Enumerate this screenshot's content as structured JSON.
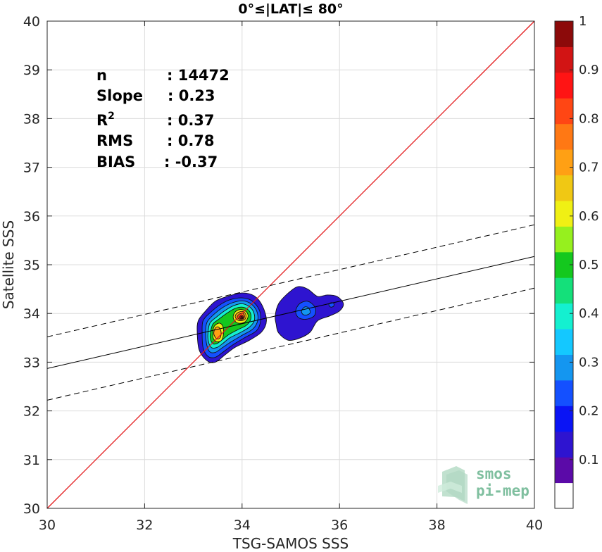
{
  "chart_data": {
    "type": "contour",
    "title": "0°≤|LAT|≤ 80°",
    "xlabel": "TSG-SAMOS SSS",
    "ylabel": "Satellite SSS",
    "xlim": [
      30,
      40
    ],
    "ylim": [
      30,
      40
    ],
    "xticks": [
      "30",
      "32",
      "34",
      "36",
      "38",
      "40"
    ],
    "yticks": [
      "30",
      "31",
      "32",
      "33",
      "34",
      "35",
      "36",
      "37",
      "38",
      "39",
      "40"
    ],
    "grid": true,
    "identity_line": {
      "from": [
        30,
        30
      ],
      "to": [
        40,
        40
      ],
      "color": "#e31a1c"
    },
    "regression_line": {
      "from": [
        30,
        32.87
      ],
      "to": [
        40,
        35.17
      ]
    },
    "confidence_lines": [
      {
        "from": [
          30,
          33.52
        ],
        "to": [
          40,
          35.82
        ]
      },
      {
        "from": [
          30,
          32.22
        ],
        "to": [
          40,
          34.52
        ]
      }
    ],
    "stats": [
      {
        "label": "n",
        "value": ": 14472"
      },
      {
        "label": "Slope",
        "value": ": 0.23"
      },
      {
        "label": "R",
        "sup": "2",
        "value": ": 0.37"
      },
      {
        "label": "RMS",
        "value": ": 0.78"
      },
      {
        "label": "BIAS",
        "value": ": -0.37"
      }
    ],
    "colorbar": {
      "range": [
        0,
        1
      ],
      "ticks": [
        "0.1",
        "0.2",
        "0.3",
        "0.4",
        "0.5",
        "0.6",
        "0.7",
        "0.8",
        "0.9",
        "1"
      ],
      "colors": [
        "#ffffff",
        "#5b0aa8",
        "#2e14d0",
        "#0a14f5",
        "#1450ff",
        "#1496f0",
        "#14c8ff",
        "#14f0d0",
        "#14e07a",
        "#14c81e",
        "#96f01e",
        "#f0f014",
        "#f0c814",
        "#ffa014",
        "#ff7814",
        "#ff4614",
        "#ff1414",
        "#d21414",
        "#8c0a0a"
      ]
    },
    "clusters": [
      {
        "name": "",
        "levels": [
          {
            "value": 0.1,
            "points": [
              [
                33.08,
                33.6
              ],
              [
                33.1,
                33.85
              ],
              [
                33.25,
                34.05
              ],
              [
                33.45,
                34.25
              ],
              [
                33.7,
                34.35
              ],
              [
                34.0,
                34.42
              ],
              [
                34.25,
                34.36
              ],
              [
                34.42,
                34.15
              ],
              [
                34.5,
                33.85
              ],
              [
                34.4,
                33.62
              ],
              [
                34.15,
                33.45
              ],
              [
                33.85,
                33.3
              ],
              [
                33.65,
                33.15
              ],
              [
                33.45,
                33.0
              ],
              [
                33.28,
                33.03
              ],
              [
                33.12,
                33.25
              ]
            ]
          },
          {
            "value": 0.2,
            "points": [
              [
                33.18,
                33.6
              ],
              [
                33.2,
                33.85
              ],
              [
                33.35,
                34.02
              ],
              [
                33.55,
                34.18
              ],
              [
                33.75,
                34.28
              ],
              [
                34.0,
                34.32
              ],
              [
                34.2,
                34.26
              ],
              [
                34.35,
                34.08
              ],
              [
                34.38,
                33.85
              ],
              [
                34.3,
                33.65
              ],
              [
                34.05,
                33.5
              ],
              [
                33.8,
                33.35
              ],
              [
                33.6,
                33.2
              ],
              [
                33.45,
                33.1
              ],
              [
                33.3,
                33.12
              ],
              [
                33.2,
                33.3
              ]
            ]
          },
          {
            "value": 0.3,
            "points": [
              [
                33.25,
                33.6
              ],
              [
                33.28,
                33.82
              ],
              [
                33.42,
                33.98
              ],
              [
                33.6,
                34.12
              ],
              [
                33.8,
                34.22
              ],
              [
                34.0,
                34.26
              ],
              [
                34.18,
                34.2
              ],
              [
                34.3,
                34.05
              ],
              [
                34.32,
                33.85
              ],
              [
                34.22,
                33.68
              ],
              [
                34.0,
                33.55
              ],
              [
                33.78,
                33.42
              ],
              [
                33.6,
                33.3
              ],
              [
                33.45,
                33.2
              ],
              [
                33.33,
                33.22
              ],
              [
                33.27,
                33.38
              ]
            ]
          },
          {
            "value": 0.4,
            "points": [
              [
                33.3,
                33.6
              ],
              [
                33.34,
                33.8
              ],
              [
                33.48,
                33.93
              ],
              [
                33.65,
                34.06
              ],
              [
                33.83,
                34.16
              ],
              [
                34.0,
                34.2
              ],
              [
                34.15,
                34.14
              ],
              [
                34.24,
                34.02
              ],
              [
                34.25,
                33.85
              ],
              [
                34.15,
                33.72
              ],
              [
                33.95,
                33.6
              ],
              [
                33.75,
                33.5
              ],
              [
                33.6,
                33.38
              ],
              [
                33.48,
                33.3
              ],
              [
                33.37,
                33.3
              ],
              [
                33.31,
                33.42
              ]
            ]
          },
          {
            "value": 0.5,
            "points": [
              [
                33.35,
                33.6
              ],
              [
                33.4,
                33.78
              ],
              [
                33.52,
                33.88
              ],
              [
                33.68,
                34.0
              ],
              [
                33.85,
                34.1
              ],
              [
                34.0,
                34.13
              ],
              [
                34.12,
                34.08
              ],
              [
                34.18,
                33.98
              ],
              [
                34.17,
                33.86
              ],
              [
                34.08,
                33.75
              ],
              [
                33.9,
                33.66
              ],
              [
                33.72,
                33.56
              ],
              [
                33.58,
                33.45
              ],
              [
                33.48,
                33.38
              ],
              [
                33.4,
                33.38
              ],
              [
                33.35,
                33.48
              ]
            ]
          },
          {
            "value": 0.6,
            "points": [
              [
                33.4,
                33.55
              ],
              [
                33.42,
                33.72
              ],
              [
                33.52,
                33.8
              ],
              [
                33.6,
                33.75
              ],
              [
                33.62,
                33.6
              ],
              [
                33.58,
                33.45
              ],
              [
                33.48,
                33.42
              ],
              [
                33.42,
                33.47
              ]
            ]
          },
          {
            "value": 0.6,
            "points": [
              [
                33.82,
                33.95
              ],
              [
                33.88,
                34.05
              ],
              [
                34.0,
                34.08
              ],
              [
                34.1,
                34.02
              ],
              [
                34.12,
                33.92
              ],
              [
                34.05,
                33.82
              ],
              [
                33.92,
                33.8
              ],
              [
                33.84,
                33.86
              ]
            ]
          },
          {
            "value": 0.7,
            "points": [
              [
                33.42,
                33.58
              ],
              [
                33.45,
                33.7
              ],
              [
                33.52,
                33.72
              ],
              [
                33.57,
                33.62
              ],
              [
                33.55,
                33.5
              ],
              [
                33.48,
                33.48
              ]
            ]
          },
          {
            "value": 0.7,
            "points": [
              [
                33.86,
                33.95
              ],
              [
                33.92,
                34.02
              ],
              [
                34.02,
                34.04
              ],
              [
                34.08,
                33.97
              ],
              [
                34.06,
                33.88
              ],
              [
                33.97,
                33.85
              ],
              [
                33.89,
                33.88
              ]
            ]
          },
          {
            "value": 0.8,
            "points": [
              [
                33.9,
                33.93
              ],
              [
                33.95,
                33.99
              ],
              [
                34.02,
                34.0
              ],
              [
                34.05,
                33.94
              ],
              [
                34.02,
                33.88
              ],
              [
                33.95,
                33.88
              ]
            ]
          },
          {
            "value": 0.9,
            "points": [
              [
                33.95,
                33.92
              ],
              [
                33.98,
                33.96
              ],
              [
                34.02,
                33.95
              ],
              [
                34.02,
                33.9
              ],
              [
                33.97,
                33.89
              ]
            ]
          },
          {
            "value": 1.0,
            "points": [
              [
                33.97,
                33.92
              ],
              [
                33.99,
                33.94
              ],
              [
                34.01,
                33.93
              ],
              [
                34.0,
                33.9
              ]
            ]
          }
        ]
      },
      {
        "name": "",
        "levels": [
          {
            "value": 0.1,
            "points": [
              [
                34.68,
                33.95
              ],
              [
                34.75,
                34.2
              ],
              [
                34.95,
                34.42
              ],
              [
                35.15,
                34.55
              ],
              [
                35.35,
                34.5
              ],
              [
                35.55,
                34.35
              ],
              [
                35.75,
                34.38
              ],
              [
                35.95,
                34.35
              ],
              [
                36.08,
                34.2
              ],
              [
                36.0,
                34.05
              ],
              [
                35.8,
                33.95
              ],
              [
                35.55,
                33.85
              ],
              [
                35.4,
                33.62
              ],
              [
                35.2,
                33.5
              ],
              [
                34.95,
                33.45
              ],
              [
                34.75,
                33.6
              ],
              [
                34.7,
                33.78
              ]
            ]
          },
          {
            "value": 0.2,
            "points": [
              [
                35.1,
                34.05
              ],
              [
                35.18,
                34.2
              ],
              [
                35.35,
                34.25
              ],
              [
                35.5,
                34.12
              ],
              [
                35.48,
                33.95
              ],
              [
                35.3,
                33.88
              ],
              [
                35.15,
                33.92
              ]
            ]
          },
          {
            "value": 0.3,
            "points": [
              [
                35.22,
                34.05
              ],
              [
                35.28,
                34.13
              ],
              [
                35.36,
                34.12
              ],
              [
                35.4,
                34.02
              ],
              [
                35.33,
                33.97
              ],
              [
                35.25,
                33.98
              ]
            ]
          },
          {
            "value": 0.2,
            "points": [
              [
                35.78,
                34.18
              ],
              [
                35.82,
                34.22
              ],
              [
                35.88,
                34.21
              ],
              [
                35.88,
                34.15
              ],
              [
                35.82,
                34.13
              ]
            ]
          }
        ]
      }
    ],
    "watermark": {
      "line1": "smos",
      "line2": "pi-mep"
    }
  }
}
